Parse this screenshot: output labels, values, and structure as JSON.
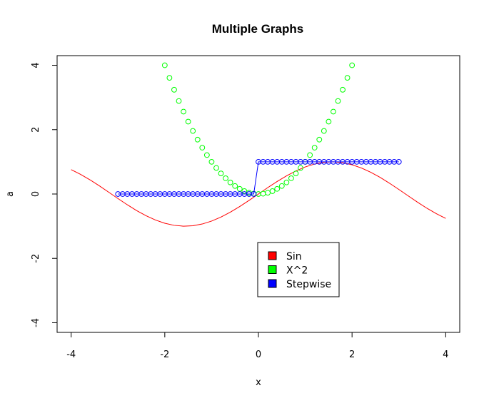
{
  "chart_data": {
    "type": "line",
    "title": "Multiple Graphs",
    "xlabel": "x",
    "ylabel": "a",
    "xlim": [
      -4.3,
      4.3
    ],
    "ylim": [
      -4.3,
      4.3
    ],
    "x_ticks": [
      -4,
      -2,
      0,
      2,
      4
    ],
    "y_ticks": [
      -4,
      -2,
      0,
      2,
      4
    ],
    "x_tick_labels": [
      "-4",
      "-2",
      "0",
      "2",
      "4"
    ],
    "y_tick_labels": [
      "-4",
      "-2",
      "0",
      "2",
      "4"
    ],
    "grid": false,
    "legend_position": "bottom-center",
    "series": [
      {
        "name": "Sin",
        "style": "line",
        "color": "#ff0000",
        "x": [
          -4.0,
          -3.8,
          -3.6,
          -3.4,
          -3.2,
          -3.0,
          -2.8,
          -2.6,
          -2.4,
          -2.2,
          -2.0,
          -1.8,
          -1.6,
          -1.4,
          -1.2,
          -1.0,
          -0.8,
          -0.6,
          -0.4,
          -0.2,
          0.0,
          0.2,
          0.4,
          0.6,
          0.8,
          1.0,
          1.2,
          1.4,
          1.6,
          1.8,
          2.0,
          2.2,
          2.4,
          2.6,
          2.8,
          3.0,
          3.2,
          3.4,
          3.6,
          3.8,
          4.0
        ],
        "y": [
          0.757,
          0.612,
          0.443,
          0.256,
          0.058,
          -0.141,
          -0.335,
          -0.516,
          -0.675,
          -0.808,
          -0.909,
          -0.974,
          -1.0,
          -0.985,
          -0.932,
          -0.841,
          -0.717,
          -0.565,
          -0.389,
          -0.199,
          0.0,
          0.199,
          0.389,
          0.565,
          0.717,
          0.841,
          0.932,
          0.985,
          1.0,
          0.974,
          0.909,
          0.808,
          0.675,
          0.516,
          0.335,
          0.141,
          -0.058,
          -0.256,
          -0.443,
          -0.612,
          -0.757
        ]
      },
      {
        "name": "X^2",
        "style": "points",
        "color": "#00ff00",
        "x": [
          -2.0,
          -1.9,
          -1.8,
          -1.7,
          -1.6,
          -1.5,
          -1.4,
          -1.3,
          -1.2,
          -1.1,
          -1.0,
          -0.9,
          -0.8,
          -0.7,
          -0.6,
          -0.5,
          -0.4,
          -0.3,
          -0.2,
          -0.1,
          0.0,
          0.1,
          0.2,
          0.3,
          0.4,
          0.5,
          0.6,
          0.7,
          0.8,
          0.9,
          1.0,
          1.1,
          1.2,
          1.3,
          1.4,
          1.5,
          1.6,
          1.7,
          1.8,
          1.9,
          2.0
        ],
        "y": [
          4.0,
          3.61,
          3.24,
          2.89,
          2.56,
          2.25,
          1.96,
          1.69,
          1.44,
          1.21,
          1.0,
          0.81,
          0.64,
          0.49,
          0.36,
          0.25,
          0.16,
          0.09,
          0.04,
          0.01,
          0.0,
          0.01,
          0.04,
          0.09,
          0.16,
          0.25,
          0.36,
          0.49,
          0.64,
          0.81,
          1.0,
          1.21,
          1.44,
          1.69,
          1.96,
          2.25,
          2.56,
          2.89,
          3.24,
          3.61,
          4.0
        ]
      },
      {
        "name": "Stepwise",
        "style": "both",
        "color": "#0000ff",
        "x": [
          -3.0,
          -2.9,
          -2.8,
          -2.7,
          -2.6,
          -2.5,
          -2.4,
          -2.3,
          -2.2,
          -2.1,
          -2.0,
          -1.9,
          -1.8,
          -1.7,
          -1.6,
          -1.5,
          -1.4,
          -1.3,
          -1.2,
          -1.1,
          -1.0,
          -0.9,
          -0.8,
          -0.7,
          -0.6,
          -0.5,
          -0.4,
          -0.3,
          -0.2,
          -0.1,
          0.0,
          0.1,
          0.2,
          0.3,
          0.4,
          0.5,
          0.6,
          0.7,
          0.8,
          0.9,
          1.0,
          1.1,
          1.2,
          1.3,
          1.4,
          1.5,
          1.6,
          1.7,
          1.8,
          1.9,
          2.0,
          2.1,
          2.2,
          2.3,
          2.4,
          2.5,
          2.6,
          2.7,
          2.8,
          2.9,
          3.0
        ],
        "y": [
          0,
          0,
          0,
          0,
          0,
          0,
          0,
          0,
          0,
          0,
          0,
          0,
          0,
          0,
          0,
          0,
          0,
          0,
          0,
          0,
          0,
          0,
          0,
          0,
          0,
          0,
          0,
          0,
          0,
          0,
          1,
          1,
          1,
          1,
          1,
          1,
          1,
          1,
          1,
          1,
          1,
          1,
          1,
          1,
          1,
          1,
          1,
          1,
          1,
          1,
          1,
          1,
          1,
          1,
          1,
          1,
          1,
          1,
          1,
          1,
          1
        ]
      }
    ]
  }
}
